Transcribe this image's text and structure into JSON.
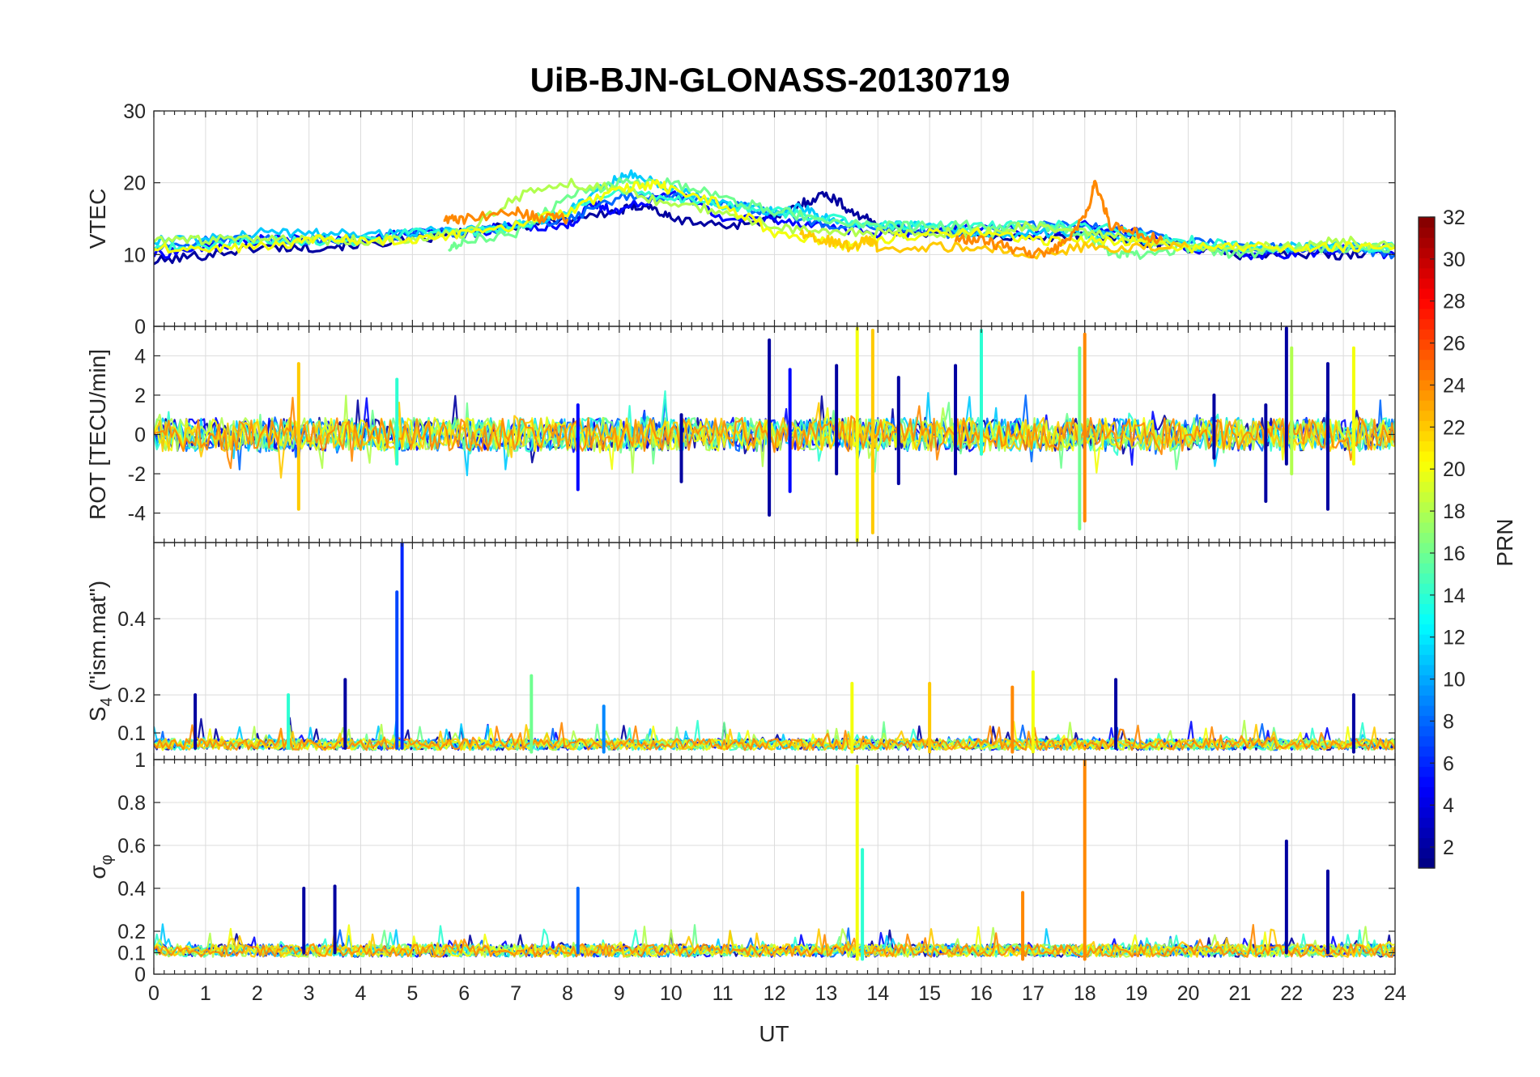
{
  "chart_data": {
    "type": "line",
    "title": "UiB-BJN-GLONASS-20130719",
    "xlabel": "UT",
    "xlim": [
      0,
      24
    ],
    "x_ticks": [
      "0",
      "1",
      "2",
      "3",
      "4",
      "5",
      "6",
      "7",
      "8",
      "9",
      "10",
      "11",
      "12",
      "13",
      "14",
      "15",
      "16",
      "17",
      "18",
      "19",
      "20",
      "21",
      "22",
      "23",
      "24"
    ],
    "colorbar": {
      "label": "PRN",
      "colormap": "jet",
      "range": [
        1,
        32
      ],
      "ticks": [
        "2",
        "4",
        "6",
        "8",
        "10",
        "12",
        "14",
        "16",
        "18",
        "20",
        "22",
        "24",
        "26",
        "28",
        "30",
        "32"
      ]
    },
    "panels": [
      {
        "id": "vtec",
        "ylabel": "VTEC",
        "ylim": [
          0,
          30
        ],
        "y_ticks": [
          "0",
          "10",
          "20",
          "30"
        ],
        "series": [
          {
            "prn": 2,
            "x": [
              0,
              1,
              2,
              3,
              4,
              5,
              6,
              7,
              8,
              9,
              9.5,
              10,
              11,
              12,
              12.5,
              13,
              13.5,
              14,
              15,
              16,
              17,
              18,
              19,
              20,
              21,
              22,
              23,
              24
            ],
            "y": [
              9,
              10,
              11,
              11,
              11.5,
              12,
              13,
              14,
              15,
              16,
              17,
              15,
              14,
              15,
              17,
              18.5,
              16,
              14,
              13,
              13,
              12,
              13,
              12,
              11,
              10,
              10,
              10,
              11
            ]
          },
          {
            "prn": 5,
            "x": [
              0,
              1,
              2,
              3,
              4,
              5,
              6,
              7,
              8,
              8.5,
              9,
              10,
              11,
              12,
              13,
              14,
              15,
              16,
              17,
              18,
              19,
              20,
              21,
              22,
              23,
              24
            ],
            "y": [
              10,
              11,
              12,
              12,
              12,
              13,
              13,
              14,
              14,
              17,
              16,
              19,
              15,
              15,
              14,
              13,
              13,
              14,
              13,
              14,
              13,
              11,
              10,
              10,
              11,
              10
            ]
          },
          {
            "prn": 8,
            "x": [
              0,
              1,
              2,
              3,
              4,
              5,
              6,
              7,
              8,
              9,
              10,
              11,
              12,
              13,
              14,
              15,
              16,
              17,
              18,
              19,
              20,
              21,
              22,
              23,
              24
            ],
            "y": [
              11,
              12,
              12,
              12,
              12,
              13,
              13,
              14,
              15,
              18,
              18,
              17,
              16,
              14,
              14,
              13,
              13,
              14,
              14,
              13,
              12,
              11,
              11,
              11,
              10
            ]
          },
          {
            "prn": 11,
            "x": [
              0,
              1,
              2,
              3,
              4,
              5,
              6,
              7,
              8,
              8.8,
              9.3,
              10,
              11,
              12,
              12.5,
              13,
              14,
              15,
              16,
              17,
              18,
              19,
              20,
              21,
              22,
              23,
              24
            ],
            "y": [
              12,
              12,
              13,
              13,
              13,
              13,
              13.5,
              14,
              16,
              20,
              21.5,
              19,
              17,
              16,
              16.5,
              15,
              14,
              14,
              13,
              13,
              13,
              12,
              11,
              11,
              11,
              11,
              11
            ]
          },
          {
            "prn": 14,
            "x": [
              0,
              1,
              2,
              3,
              4,
              5,
              6,
              7,
              8,
              9,
              10,
              11,
              12,
              13,
              14,
              15,
              16,
              17,
              18,
              19,
              20,
              21,
              22,
              23,
              24
            ],
            "y": [
              11,
              11,
              12,
              12,
              12,
              13,
              13,
              14,
              16,
              19,
              18,
              17,
              16,
              15,
              14,
              14,
              14,
              14,
              14,
              13,
              12,
              11,
              11,
              11,
              11
            ]
          },
          {
            "prn": 16,
            "x": [
              5.7,
              6,
              7,
              8,
              9,
              10,
              11,
              12,
              13,
              14,
              15,
              16,
              17,
              18,
              18.5,
              19,
              20,
              21,
              22,
              23,
              24
            ],
            "y": [
              11,
              12,
              13,
              18,
              20,
              20,
              18,
              16,
              15,
              14,
              14,
              14,
              14,
              13,
              10,
              10,
              11,
              10,
              11,
              11,
              11
            ]
          },
          {
            "prn": 18,
            "x": [
              0,
              1,
              2,
              3,
              4,
              5,
              6,
              7,
              8,
              9,
              10,
              11,
              12,
              13,
              14,
              15,
              16,
              17,
              18,
              19,
              20,
              21,
              22,
              23,
              24
            ],
            "y": [
              12,
              12,
              12,
              12,
              12,
              12,
              13,
              18,
              20,
              19,
              17,
              16,
              14,
              13,
              13,
              13,
              13,
              14,
              13,
              12,
              11,
              11,
              11,
              12,
              11
            ]
          },
          {
            "prn": 20,
            "x": [
              0,
              1,
              2,
              3,
              4,
              5,
              6,
              7,
              8,
              9,
              9.7,
              10,
              11,
              12,
              13,
              13.5,
              14,
              15,
              16,
              17,
              18,
              19,
              20,
              21,
              22,
              23,
              24
            ],
            "y": [
              11,
              11,
              11,
              12,
              12,
              12,
              13,
              14,
              16,
              19,
              20,
              19,
              17,
              13,
              12,
              11,
              12,
              13,
              13,
              12,
              12,
              12,
              11,
              11,
              11,
              11,
              11
            ]
          },
          {
            "prn": 22,
            "x": [
              12.5,
              13,
              13.5,
              13.8,
              14,
              15,
              16,
              17,
              18,
              19,
              20
            ],
            "y": [
              13,
              12,
              11,
              12,
              11,
              11,
              11,
              10,
              11,
              11,
              11
            ]
          },
          {
            "prn": 24,
            "x": [
              5.6,
              6,
              7,
              7.5,
              8
            ],
            "y": [
              15,
              15,
              16,
              15,
              15
            ]
          },
          {
            "prn": 24,
            "x": [
              15.5,
              16,
              16.5,
              17,
              17.5,
              18,
              18.2,
              18.5,
              19,
              19.5
            ],
            "y": [
              12,
              12,
              11,
              10,
              11,
              15,
              20,
              14,
              13,
              12
            ]
          }
        ]
      },
      {
        "id": "rot",
        "ylabel": "ROT [TECU/min]",
        "ylim": [
          -5.5,
          5.5
        ],
        "y_ticks": [
          "-4",
          "-2",
          "0",
          "2",
          "4"
        ],
        "spikes": [
          {
            "prn": 22,
            "x": 2.8,
            "y_min": -3.8,
            "y_max": 3.6
          },
          {
            "prn": 14,
            "x": 4.7,
            "y_min": -1.5,
            "y_max": 2.8
          },
          {
            "prn": 5,
            "x": 8.2,
            "y_min": -2.8,
            "y_max": 1.5
          },
          {
            "prn": 2,
            "x": 10.2,
            "y_min": -2.4,
            "y_max": 1.0
          },
          {
            "prn": 2,
            "x": 11.9,
            "y_min": -4.1,
            "y_max": 4.8
          },
          {
            "prn": 5,
            "x": 12.3,
            "y_min": -2.9,
            "y_max": 3.3
          },
          {
            "prn": 2,
            "x": 13.2,
            "y_min": -2.0,
            "y_max": 3.5
          },
          {
            "prn": 20,
            "x": 13.6,
            "y_min": -5.4,
            "y_max": 5.4
          },
          {
            "prn": 22,
            "x": 13.9,
            "y_min": -5.0,
            "y_max": 5.3
          },
          {
            "prn": 2,
            "x": 14.4,
            "y_min": -2.5,
            "y_max": 2.9
          },
          {
            "prn": 2,
            "x": 15.5,
            "y_min": -2.0,
            "y_max": 3.5
          },
          {
            "prn": 14,
            "x": 16.0,
            "y_min": -1.0,
            "y_max": 5.3
          },
          {
            "prn": 16,
            "x": 17.9,
            "y_min": -4.8,
            "y_max": 4.4
          },
          {
            "prn": 24,
            "x": 18.0,
            "y_min": -4.4,
            "y_max": 5.1
          },
          {
            "prn": 2,
            "x": 20.5,
            "y_min": -1.2,
            "y_max": 2.0
          },
          {
            "prn": 2,
            "x": 21.5,
            "y_min": -3.4,
            "y_max": 1.5
          },
          {
            "prn": 2,
            "x": 21.9,
            "y_min": -1.5,
            "y_max": 5.4
          },
          {
            "prn": 18,
            "x": 22.0,
            "y_min": -2.0,
            "y_max": 4.4
          },
          {
            "prn": 2,
            "x": 22.7,
            "y_min": -3.8,
            "y_max": 3.6
          },
          {
            "prn": 20,
            "x": 23.2,
            "y_min": -1.5,
            "y_max": 4.4
          }
        ]
      },
      {
        "id": "s4",
        "ylabel": "S4 (\"ism.mat\")",
        "ylim": [
          0.03,
          0.6
        ],
        "y_ticks": [
          "0.1",
          "0.2",
          "0.4"
        ],
        "spikes": [
          {
            "prn": 2,
            "x": 0.8,
            "y_min": 0.06,
            "y_max": 0.2
          },
          {
            "prn": 14,
            "x": 2.6,
            "y_min": 0.06,
            "y_max": 0.2
          },
          {
            "prn": 2,
            "x": 3.7,
            "y_min": 0.06,
            "y_max": 0.24
          },
          {
            "prn": 6,
            "x": 4.8,
            "y_min": 0.06,
            "y_max": 0.6
          },
          {
            "prn": 7,
            "x": 4.7,
            "y_min": 0.06,
            "y_max": 0.47
          },
          {
            "prn": 16,
            "x": 7.3,
            "y_min": 0.05,
            "y_max": 0.25
          },
          {
            "prn": 9,
            "x": 8.7,
            "y_min": 0.05,
            "y_max": 0.17
          },
          {
            "prn": 20,
            "x": 13.5,
            "y_min": 0.05,
            "y_max": 0.23
          },
          {
            "prn": 22,
            "x": 15.0,
            "y_min": 0.05,
            "y_max": 0.23
          },
          {
            "prn": 24,
            "x": 16.6,
            "y_min": 0.05,
            "y_max": 0.22
          },
          {
            "prn": 20,
            "x": 17.0,
            "y_min": 0.05,
            "y_max": 0.26
          },
          {
            "prn": 2,
            "x": 18.6,
            "y_min": 0.06,
            "y_max": 0.24
          },
          {
            "prn": 2,
            "x": 23.2,
            "y_min": 0.05,
            "y_max": 0.2
          }
        ]
      },
      {
        "id": "sigma_phi",
        "ylabel": "σφ",
        "ylim": [
          0,
          1
        ],
        "y_ticks": [
          "0",
          "0.1",
          "0.2",
          "0.4",
          "0.6",
          "0.8",
          "1"
        ],
        "spikes": [
          {
            "prn": 2,
            "x": 2.9,
            "y_min": 0.1,
            "y_max": 0.4
          },
          {
            "prn": 2,
            "x": 3.5,
            "y_min": 0.1,
            "y_max": 0.41
          },
          {
            "prn": 8,
            "x": 8.2,
            "y_min": 0.1,
            "y_max": 0.4
          },
          {
            "prn": 20,
            "x": 13.6,
            "y_min": 0.07,
            "y_max": 0.97
          },
          {
            "prn": 14,
            "x": 13.7,
            "y_min": 0.07,
            "y_max": 0.58
          },
          {
            "prn": 24,
            "x": 16.8,
            "y_min": 0.07,
            "y_max": 0.38
          },
          {
            "prn": 24,
            "x": 18.0,
            "y_min": 0.07,
            "y_max": 1.0
          },
          {
            "prn": 2,
            "x": 21.9,
            "y_min": 0.1,
            "y_max": 0.62
          },
          {
            "prn": 2,
            "x": 22.7,
            "y_min": 0.1,
            "y_max": 0.48
          }
        ]
      }
    ]
  }
}
